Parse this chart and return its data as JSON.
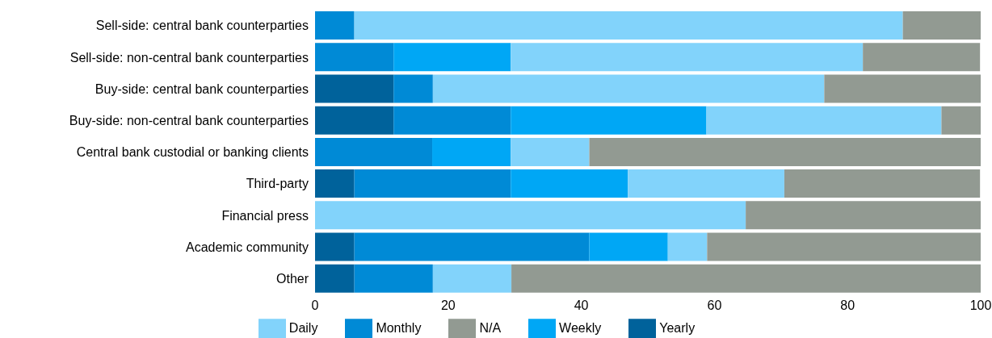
{
  "chart_data": {
    "type": "bar",
    "orientation": "horizontal",
    "stacked": true,
    "categories": [
      "Sell-side: central bank counterparties",
      "Sell-side: non-central bank counterparties",
      "Buy-side: central bank counterparties",
      "Buy-side: non-central bank counterparties",
      "Central bank custodial or banking clients",
      "Third-party",
      "Financial press",
      "Academic community",
      "Other"
    ],
    "series": [
      {
        "name": "Yearly",
        "color": "#00629b",
        "values": [
          0,
          0,
          11.8,
          11.8,
          0,
          5.9,
          0,
          5.9,
          5.9
        ]
      },
      {
        "name": "Monthly",
        "color": "#008ad6",
        "values": [
          5.9,
          11.8,
          5.9,
          17.6,
          17.6,
          23.5,
          0,
          35.3,
          11.8
        ]
      },
      {
        "name": "Weekly",
        "color": "#00a7f5",
        "values": [
          0,
          17.6,
          0,
          29.4,
          11.8,
          17.6,
          0,
          11.8,
          0
        ]
      },
      {
        "name": "Daily",
        "color": "#82d3fb",
        "values": [
          82.4,
          52.9,
          58.8,
          35.3,
          11.8,
          23.5,
          64.7,
          5.9,
          11.8
        ]
      },
      {
        "name": "N/A",
        "color": "#929a92",
        "values": [
          11.8,
          17.6,
          23.5,
          5.9,
          58.8,
          29.4,
          35.3,
          41.2,
          70.6
        ]
      }
    ],
    "xlim": [
      0,
      100
    ],
    "xticks": [
      0,
      20,
      40,
      60,
      80,
      100
    ],
    "grid": false,
    "legend": "bottom"
  }
}
